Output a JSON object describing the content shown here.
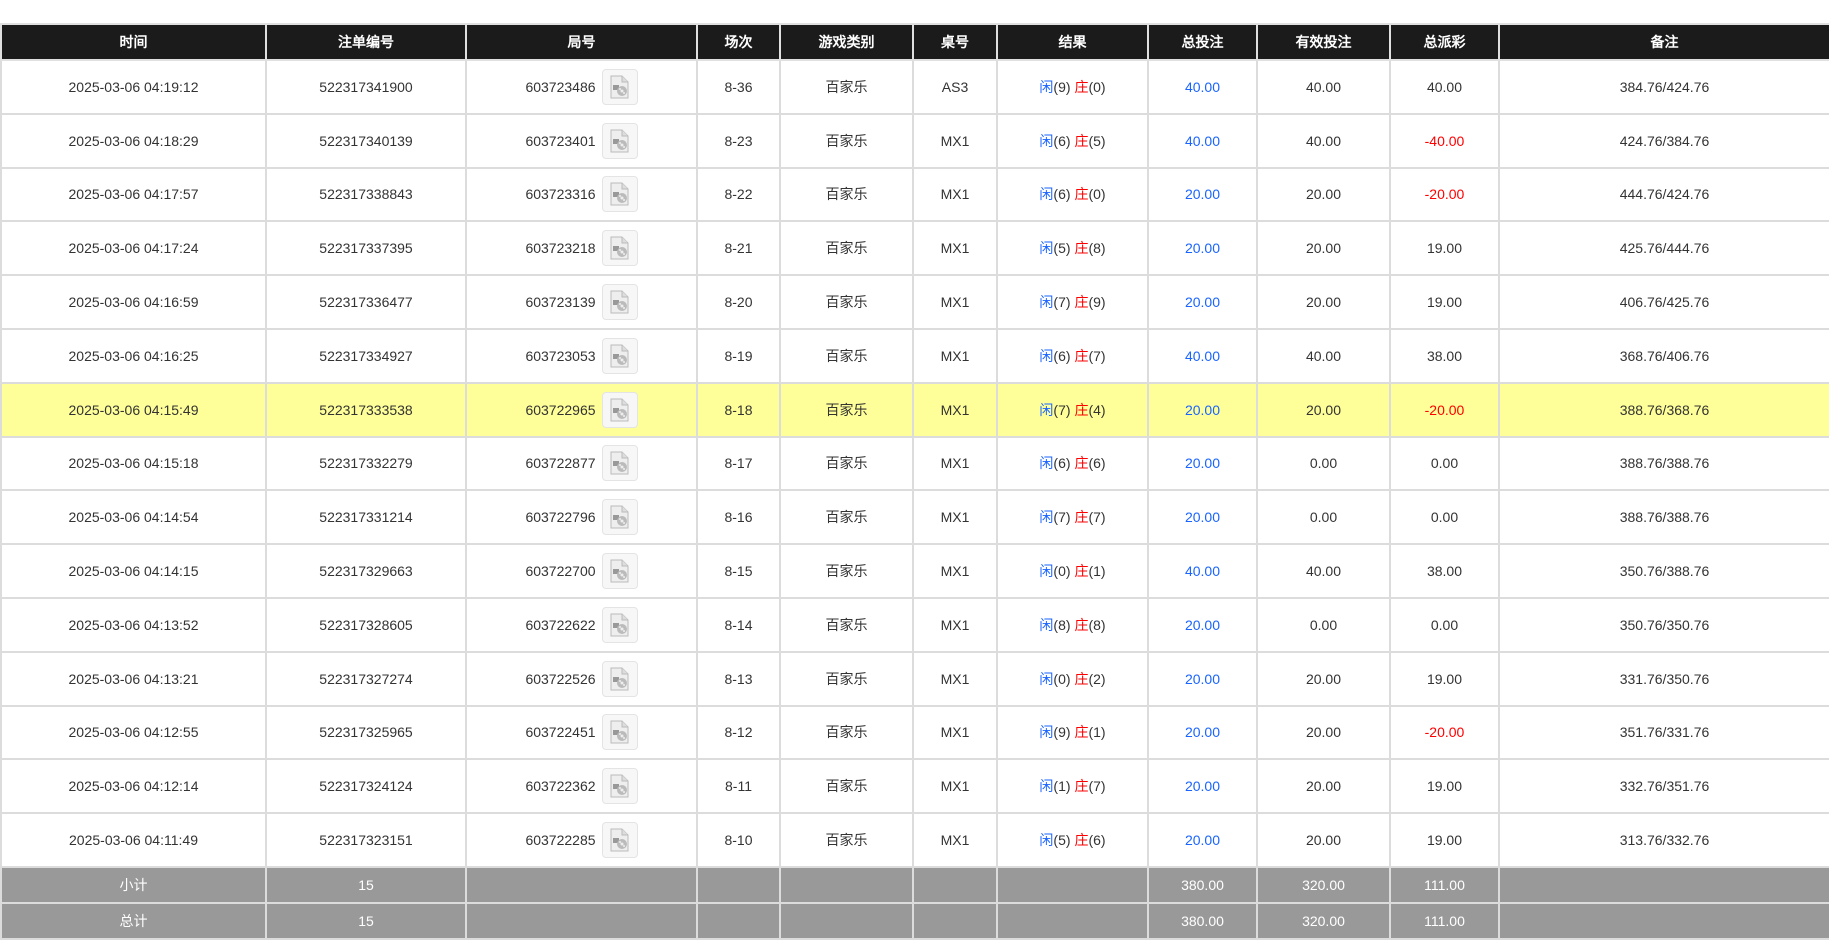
{
  "columns": [
    "时间",
    "注单编号",
    "局号",
    "场次",
    "游戏类别",
    "桌号",
    "结果",
    "总投注",
    "有效投注",
    "总派彩",
    "备注"
  ],
  "colors": {
    "header_bg": "#1b1b1b",
    "footer_bg": "#999999",
    "highlight_row": "#ffff99",
    "player_blue": "#1a64ff",
    "banker_red": "#ff0000"
  },
  "result_labels": {
    "player": "闲",
    "banker": "庄"
  },
  "video_icon": "video-file-icon",
  "rows": [
    {
      "time": "2025-03-06 04:19:12",
      "bet_id": "522317341900",
      "round": "603723486",
      "session": "8-36",
      "game": "百家乐",
      "table": "AS3",
      "player": "(9)",
      "banker": "(0)",
      "total_bet": "40.00",
      "valid_bet": "40.00",
      "payout": "40.00",
      "payout_negative": false,
      "note": "384.76/424.76",
      "highlighted": false
    },
    {
      "time": "2025-03-06 04:18:29",
      "bet_id": "522317340139",
      "round": "603723401",
      "session": "8-23",
      "game": "百家乐",
      "table": "MX1",
      "player": "(6)",
      "banker": "(5)",
      "total_bet": "40.00",
      "valid_bet": "40.00",
      "payout": "-40.00",
      "payout_negative": true,
      "note": "424.76/384.76",
      "highlighted": false
    },
    {
      "time": "2025-03-06 04:17:57",
      "bet_id": "522317338843",
      "round": "603723316",
      "session": "8-22",
      "game": "百家乐",
      "table": "MX1",
      "player": "(6)",
      "banker": "(0)",
      "total_bet": "20.00",
      "valid_bet": "20.00",
      "payout": "-20.00",
      "payout_negative": true,
      "note": "444.76/424.76",
      "highlighted": false
    },
    {
      "time": "2025-03-06 04:17:24",
      "bet_id": "522317337395",
      "round": "603723218",
      "session": "8-21",
      "game": "百家乐",
      "table": "MX1",
      "player": "(5)",
      "banker": "(8)",
      "total_bet": "20.00",
      "valid_bet": "20.00",
      "payout": "19.00",
      "payout_negative": false,
      "note": "425.76/444.76",
      "highlighted": false
    },
    {
      "time": "2025-03-06 04:16:59",
      "bet_id": "522317336477",
      "round": "603723139",
      "session": "8-20",
      "game": "百家乐",
      "table": "MX1",
      "player": "(7)",
      "banker": "(9)",
      "total_bet": "20.00",
      "valid_bet": "20.00",
      "payout": "19.00",
      "payout_negative": false,
      "note": "406.76/425.76",
      "highlighted": false
    },
    {
      "time": "2025-03-06 04:16:25",
      "bet_id": "522317334927",
      "round": "603723053",
      "session": "8-19",
      "game": "百家乐",
      "table": "MX1",
      "player": "(6)",
      "banker": "(7)",
      "total_bet": "40.00",
      "valid_bet": "40.00",
      "payout": "38.00",
      "payout_negative": false,
      "note": "368.76/406.76",
      "highlighted": false
    },
    {
      "time": "2025-03-06 04:15:49",
      "bet_id": "522317333538",
      "round": "603722965",
      "session": "8-18",
      "game": "百家乐",
      "table": "MX1",
      "player": "(7)",
      "banker": "(4)",
      "total_bet": "20.00",
      "valid_bet": "20.00",
      "payout": "-20.00",
      "payout_negative": true,
      "note": "388.76/368.76",
      "highlighted": true
    },
    {
      "time": "2025-03-06 04:15:18",
      "bet_id": "522317332279",
      "round": "603722877",
      "session": "8-17",
      "game": "百家乐",
      "table": "MX1",
      "player": "(6)",
      "banker": "(6)",
      "total_bet": "20.00",
      "valid_bet": "0.00",
      "payout": "0.00",
      "payout_negative": false,
      "note": "388.76/388.76",
      "highlighted": false
    },
    {
      "time": "2025-03-06 04:14:54",
      "bet_id": "522317331214",
      "round": "603722796",
      "session": "8-16",
      "game": "百家乐",
      "table": "MX1",
      "player": "(7)",
      "banker": "(7)",
      "total_bet": "20.00",
      "valid_bet": "0.00",
      "payout": "0.00",
      "payout_negative": false,
      "note": "388.76/388.76",
      "highlighted": false
    },
    {
      "time": "2025-03-06 04:14:15",
      "bet_id": "522317329663",
      "round": "603722700",
      "session": "8-15",
      "game": "百家乐",
      "table": "MX1",
      "player": "(0)",
      "banker": "(1)",
      "total_bet": "40.00",
      "valid_bet": "40.00",
      "payout": "38.00",
      "payout_negative": false,
      "note": "350.76/388.76",
      "highlighted": false
    },
    {
      "time": "2025-03-06 04:13:52",
      "bet_id": "522317328605",
      "round": "603722622",
      "session": "8-14",
      "game": "百家乐",
      "table": "MX1",
      "player": "(8)",
      "banker": "(8)",
      "total_bet": "20.00",
      "valid_bet": "0.00",
      "payout": "0.00",
      "payout_negative": false,
      "note": "350.76/350.76",
      "highlighted": false
    },
    {
      "time": "2025-03-06 04:13:21",
      "bet_id": "522317327274",
      "round": "603722526",
      "session": "8-13",
      "game": "百家乐",
      "table": "MX1",
      "player": "(0)",
      "banker": "(2)",
      "total_bet": "20.00",
      "valid_bet": "20.00",
      "payout": "19.00",
      "payout_negative": false,
      "note": "331.76/350.76",
      "highlighted": false
    },
    {
      "time": "2025-03-06 04:12:55",
      "bet_id": "522317325965",
      "round": "603722451",
      "session": "8-12",
      "game": "百家乐",
      "table": "MX1",
      "player": "(9)",
      "banker": "(1)",
      "total_bet": "20.00",
      "valid_bet": "20.00",
      "payout": "-20.00",
      "payout_negative": true,
      "note": "351.76/331.76",
      "highlighted": false
    },
    {
      "time": "2025-03-06 04:12:14",
      "bet_id": "522317324124",
      "round": "603722362",
      "session": "8-11",
      "game": "百家乐",
      "table": "MX1",
      "player": "(1)",
      "banker": "(7)",
      "total_bet": "20.00",
      "valid_bet": "20.00",
      "payout": "19.00",
      "payout_negative": false,
      "note": "332.76/351.76",
      "highlighted": false
    },
    {
      "time": "2025-03-06 04:11:49",
      "bet_id": "522317323151",
      "round": "603722285",
      "session": "8-10",
      "game": "百家乐",
      "table": "MX1",
      "player": "(5)",
      "banker": "(6)",
      "total_bet": "20.00",
      "valid_bet": "20.00",
      "payout": "19.00",
      "payout_negative": false,
      "note": "313.76/332.76",
      "highlighted": false
    }
  ],
  "subtotal": {
    "label": "小计",
    "count": "15",
    "total_bet": "380.00",
    "valid_bet": "320.00",
    "payout": "111.00"
  },
  "total": {
    "label": "总计",
    "count": "15",
    "total_bet": "380.00",
    "valid_bet": "320.00",
    "payout": "111.00"
  }
}
